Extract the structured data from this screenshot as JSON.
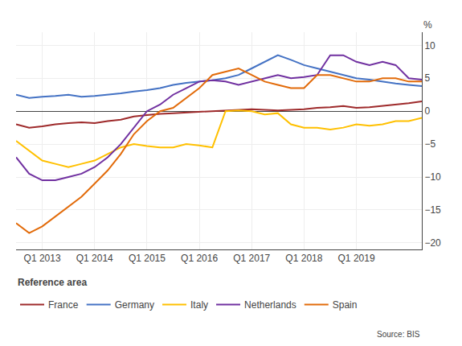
{
  "chart_data": {
    "type": "line",
    "ylabel": "%",
    "annotations": [
      "Reference area",
      "Source: BIS"
    ],
    "categories": [
      null,
      null,
      "Q1 2013",
      null,
      null,
      null,
      "Q1 2014",
      null,
      null,
      null,
      "Q1 2015",
      null,
      null,
      null,
      "Q1 2016",
      null,
      null,
      null,
      "Q1 2017",
      null,
      null,
      null,
      "Q1 2018",
      null,
      null,
      null,
      "Q1 2019",
      null,
      null,
      null,
      null,
      null
    ],
    "series": [
      {
        "name": "France",
        "color": "#9e2a2b",
        "values": [
          -2.0,
          -2.5,
          -2.3,
          -2.0,
          -1.8,
          -1.7,
          -1.8,
          -1.5,
          -1.3,
          -0.8,
          -0.6,
          -0.4,
          -0.3,
          -0.2,
          -0.1,
          0.0,
          0.1,
          0.2,
          0.3,
          0.2,
          0.1,
          0.2,
          0.3,
          0.5,
          0.6,
          0.8,
          0.5,
          0.6,
          0.8,
          1.0,
          1.2,
          1.5
        ]
      },
      {
        "name": "Germany",
        "color": "#4472c4",
        "values": [
          2.5,
          2.0,
          2.2,
          2.3,
          2.5,
          2.2,
          2.3,
          2.5,
          2.7,
          3.0,
          3.2,
          3.5,
          4.0,
          4.3,
          4.5,
          4.7,
          5.0,
          5.5,
          6.5,
          7.5,
          8.5,
          7.8,
          7.0,
          6.5,
          6.0,
          5.5,
          5.0,
          4.8,
          4.5,
          4.2,
          4.0,
          3.8
        ]
      },
      {
        "name": "Italy",
        "color": "#ffc000",
        "values": [
          -4.5,
          -6.0,
          -7.5,
          -8.0,
          -8.5,
          -8.0,
          -7.5,
          -6.5,
          -5.5,
          -5.0,
          -5.3,
          -5.5,
          -5.5,
          -5.0,
          -5.2,
          -5.5,
          0.0,
          0.1,
          0.0,
          -0.5,
          -0.3,
          -2.0,
          -2.5,
          -2.5,
          -2.8,
          -2.5,
          -2.0,
          -2.2,
          -2.0,
          -1.5,
          -1.5,
          -1.0
        ]
      },
      {
        "name": "Netherlands",
        "color": "#7030a0",
        "values": [
          -7.0,
          -9.5,
          -10.5,
          -10.5,
          -10.0,
          -9.5,
          -8.5,
          -7.0,
          -5.0,
          -2.5,
          0.0,
          1.0,
          2.5,
          3.5,
          4.5,
          4.7,
          4.5,
          4.0,
          4.5,
          5.0,
          5.5,
          5.0,
          5.2,
          5.5,
          8.5,
          8.5,
          7.5,
          7.0,
          7.5,
          7.0,
          5.0,
          4.8
        ]
      },
      {
        "name": "Spain",
        "color": "#e26b0a",
        "values": [
          -17.0,
          -18.5,
          -17.5,
          -16.0,
          -14.5,
          -13.0,
          -11.0,
          -9.0,
          -6.5,
          -3.5,
          -1.5,
          0.0,
          0.5,
          2.0,
          3.5,
          5.5,
          6.0,
          6.5,
          5.5,
          4.5,
          4.0,
          3.5,
          3.5,
          5.5,
          5.5,
          5.0,
          4.5,
          4.5,
          5.0,
          5.0,
          4.5,
          4.5
        ]
      }
    ],
    "ylim": [
      -21,
      12
    ],
    "yticks": [
      -20,
      -15,
      -10,
      -5,
      0,
      5,
      10
    ],
    "grid": true,
    "legend": "bottom"
  }
}
